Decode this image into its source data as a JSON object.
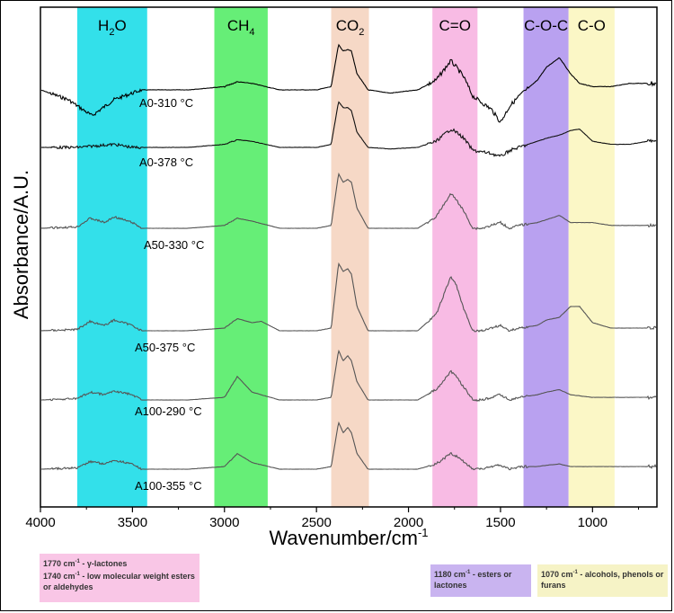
{
  "chart_data": {
    "type": "line",
    "xlabel": "Wavenumber/cm",
    "xlabel_sup": "-1",
    "ylabel": "Absorbance/A.U.",
    "xlim": [
      4000,
      650
    ],
    "x_ticks": [
      4000,
      3500,
      3000,
      2500,
      2000,
      1500,
      1000
    ],
    "x_tick_labels": [
      "4000",
      "3500",
      "3000",
      "2500",
      "2000",
      "1500",
      "1000"
    ],
    "grid": false,
    "bands": [
      {
        "label": "H",
        "sub": "2",
        "suffix": "O",
        "from": 3800,
        "to": 3420,
        "color": "#33e0ea"
      },
      {
        "label": "CH",
        "sub": "4",
        "suffix": "",
        "from": 3055,
        "to": 2765,
        "color": "#66ee77"
      },
      {
        "label": "CO",
        "sub": "2",
        "suffix": "",
        "from": 2420,
        "to": 2215,
        "color": "#f6d8c6"
      },
      {
        "label": "C=O",
        "sub": "",
        "suffix": "",
        "from": 1870,
        "to": 1625,
        "color": "#f8bbe4"
      },
      {
        "label": "C-O-C",
        "sub": "",
        "suffix": "",
        "from": 1375,
        "to": 1130,
        "color": "#b9a1f0"
      },
      {
        "label": "C-O",
        "sub": "",
        "suffix": "",
        "from": 1130,
        "to": 880,
        "color": "#fbf7c6"
      }
    ],
    "series": [
      {
        "name": "A0-310 °C",
        "color": "#000000",
        "noise": 0.9,
        "x": [
          4000,
          3850,
          3720,
          3600,
          3450,
          3200,
          3000,
          2930,
          2850,
          2700,
          2500,
          2420,
          2380,
          2355,
          2330,
          2310,
          2280,
          2220,
          2100,
          1950,
          1850,
          1770,
          1740,
          1700,
          1650,
          1550,
          1500,
          1450,
          1400,
          1300,
          1250,
          1180,
          1120,
          1070,
          1000,
          900,
          800,
          700,
          650
        ],
        "y": [
          0.0,
          -0.03,
          -0.08,
          -0.03,
          0.0,
          0.0,
          0.01,
          0.025,
          0.02,
          0.0,
          0.0,
          0.01,
          0.14,
          0.12,
          0.125,
          0.12,
          0.05,
          0.0,
          -0.01,
          0.0,
          0.03,
          0.09,
          0.07,
          0.04,
          -0.02,
          -0.06,
          -0.1,
          -0.05,
          -0.02,
          0.03,
          0.07,
          0.1,
          0.05,
          0.02,
          0.01,
          0.01,
          0.02,
          0.02,
          0.02
        ]
      },
      {
        "name": "A0-378 °C",
        "color": "#111111",
        "noise": 0.7,
        "x": [
          4000,
          3800,
          3600,
          3500,
          3200,
          3000,
          2930,
          2850,
          2700,
          2500,
          2420,
          2380,
          2355,
          2330,
          2310,
          2280,
          2220,
          2100,
          1950,
          1850,
          1770,
          1740,
          1700,
          1650,
          1550,
          1500,
          1450,
          1400,
          1300,
          1250,
          1180,
          1120,
          1070,
          1000,
          900,
          800,
          700,
          650
        ],
        "y": [
          0.0,
          0.0,
          0.01,
          0.0,
          0.0,
          0.01,
          0.025,
          0.02,
          0.0,
          0.0,
          0.01,
          0.15,
          0.13,
          0.13,
          0.12,
          0.05,
          0.0,
          -0.005,
          0.0,
          0.02,
          0.06,
          0.05,
          0.03,
          -0.01,
          -0.02,
          -0.03,
          -0.01,
          0.0,
          0.02,
          0.03,
          0.04,
          0.055,
          0.06,
          0.02,
          0.01,
          0.01,
          0.02,
          0.02
        ]
      },
      {
        "name": "A50-330 °C",
        "color": "#555555",
        "noise": 0.5,
        "x": [
          4000,
          3800,
          3730,
          3650,
          3600,
          3500,
          3450,
          3200,
          3000,
          2930,
          2850,
          2700,
          2500,
          2420,
          2380,
          2355,
          2330,
          2310,
          2280,
          2220,
          2100,
          1950,
          1850,
          1770,
          1740,
          1700,
          1650,
          1600,
          1550,
          1500,
          1450,
          1400,
          1300,
          1250,
          1180,
          1120,
          1000,
          900,
          800,
          700,
          650
        ],
        "y": [
          0.0,
          0.005,
          0.035,
          0.02,
          0.04,
          0.02,
          0.0,
          0.0,
          0.01,
          0.035,
          0.025,
          0.0,
          0.0,
          0.01,
          0.19,
          0.16,
          0.17,
          0.16,
          0.07,
          0.0,
          0.0,
          0.0,
          0.04,
          0.12,
          0.1,
          0.06,
          0.0,
          0.0,
          0.01,
          0.02,
          0.0,
          0.01,
          0.02,
          0.03,
          0.045,
          0.02,
          0.02,
          0.01,
          0.01,
          0.01,
          0.01
        ]
      },
      {
        "name": "A50-375 °C",
        "color": "#555555",
        "noise": 0.5,
        "x": [
          4000,
          3800,
          3730,
          3650,
          3600,
          3500,
          3450,
          3200,
          3000,
          2930,
          2850,
          2800,
          2700,
          2500,
          2420,
          2380,
          2355,
          2330,
          2310,
          2280,
          2220,
          2100,
          1950,
          1850,
          1770,
          1740,
          1700,
          1650,
          1600,
          1550,
          1500,
          1450,
          1400,
          1300,
          1250,
          1180,
          1120,
          1070,
          1000,
          900,
          800,
          700,
          650
        ],
        "y": [
          0.0,
          0.005,
          0.035,
          0.02,
          0.04,
          0.02,
          0.0,
          0.0,
          0.01,
          0.045,
          0.03,
          0.035,
          0.0,
          0.0,
          0.01,
          0.25,
          0.22,
          0.23,
          0.21,
          0.09,
          0.0,
          0.0,
          0.0,
          0.06,
          0.2,
          0.17,
          0.08,
          0.0,
          0.0,
          0.01,
          0.02,
          0.0,
          0.01,
          0.02,
          0.04,
          0.05,
          0.09,
          0.09,
          0.03,
          0.01,
          0.01,
          0.01,
          0.01
        ]
      },
      {
        "name": "A100-290 °C",
        "color": "#555555",
        "noise": 0.5,
        "x": [
          4000,
          3800,
          3730,
          3650,
          3600,
          3500,
          3450,
          3200,
          3000,
          2930,
          2850,
          2700,
          2500,
          2420,
          2380,
          2355,
          2330,
          2310,
          2280,
          2220,
          2100,
          1950,
          1850,
          1770,
          1740,
          1700,
          1650,
          1600,
          1550,
          1500,
          1450,
          1400,
          1300,
          1250,
          1180,
          1120,
          1000,
          900,
          800,
          700,
          650
        ],
        "y": [
          0.0,
          0.005,
          0.03,
          0.02,
          0.035,
          0.02,
          0.0,
          0.0,
          0.01,
          0.09,
          0.03,
          0.0,
          0.0,
          0.01,
          0.19,
          0.15,
          0.17,
          0.15,
          0.07,
          0.0,
          0.0,
          0.0,
          0.04,
          0.11,
          0.09,
          0.05,
          0.0,
          0.0,
          0.01,
          0.02,
          0.0,
          0.01,
          0.02,
          0.03,
          0.04,
          0.02,
          0.01,
          0.01,
          0.01,
          0.01,
          0.01
        ]
      },
      {
        "name": "A100-355 °C",
        "color": "#555555",
        "noise": 0.5,
        "x": [
          4000,
          3800,
          3730,
          3650,
          3600,
          3500,
          3450,
          3200,
          3000,
          2930,
          2850,
          2700,
          2500,
          2420,
          2380,
          2355,
          2330,
          2310,
          2280,
          2220,
          2100,
          1950,
          1850,
          1770,
          1740,
          1700,
          1650,
          1600,
          1550,
          1500,
          1450,
          1400,
          1300,
          1250,
          1180,
          1120,
          1000,
          900,
          800,
          700,
          650
        ],
        "y": [
          0.0,
          0.005,
          0.03,
          0.02,
          0.035,
          0.02,
          0.0,
          0.0,
          0.01,
          0.06,
          0.025,
          0.0,
          0.0,
          0.01,
          0.18,
          0.14,
          0.16,
          0.14,
          0.06,
          0.0,
          0.0,
          0.0,
          0.02,
          0.06,
          0.05,
          0.03,
          0.0,
          0.0,
          0.01,
          0.015,
          0.0,
          0.01,
          0.01,
          0.015,
          0.02,
          0.01,
          0.01,
          0.01,
          0.01,
          0.01,
          0.01
        ]
      }
    ]
  },
  "notes": {
    "box1": {
      "line1_num": "1770 cm",
      "line1_sup": "-1",
      "line1_text": " - γ-lactones",
      "line2_num": "1740 cm",
      "line2_sup": "-1",
      "line2_text": " - low molecular weight esters or aldehydes"
    },
    "box2": {
      "num": "1180 cm",
      "sup": "-1",
      "text": " - esters or lactones"
    },
    "box3": {
      "num": "1070 cm",
      "sup": "-1",
      "text": " - alcohols, phenols or furans"
    }
  }
}
